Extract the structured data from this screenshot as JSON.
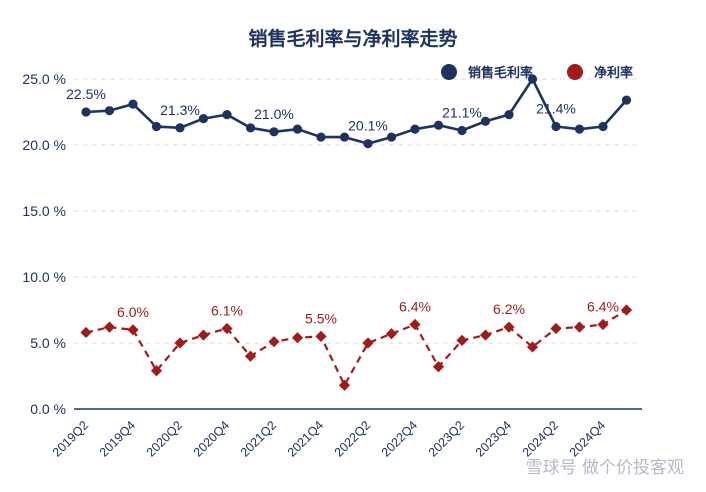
{
  "chart_data": {
    "type": "line",
    "title": "销售毛利率与净利率走势",
    "categories": [
      "2019Q2",
      "2019Q3",
      "2019Q4",
      "2020Q1",
      "2020Q2",
      "2020Q3",
      "2020Q4",
      "2021Q1",
      "2021Q2",
      "2021Q3",
      "2021Q4",
      "2022Q1",
      "2022Q2",
      "2022Q3",
      "2022Q4",
      "2023Q1",
      "2023Q2",
      "2023Q3",
      "2023Q4",
      "2024Q1",
      "2024Q2",
      "2024Q3",
      "2024Q4",
      "2025Q1"
    ],
    "tick_labels": [
      "2019Q2",
      "",
      "2019Q4",
      "",
      "2020Q2",
      "",
      "2020Q4",
      "",
      "2021Q2",
      "",
      "2021Q4",
      "",
      "2022Q2",
      "",
      "2022Q4",
      "",
      "2023Q2",
      "",
      "2023Q4",
      "",
      "2024Q2",
      "",
      "2024Q4",
      ""
    ],
    "series": [
      {
        "name": "销售毛利率",
        "color": "#1f3260",
        "marker": "circle",
        "line_style": "solid",
        "values": [
          22.5,
          22.6,
          23.1,
          21.4,
          21.3,
          22.0,
          22.3,
          21.3,
          21.0,
          21.2,
          20.6,
          20.6,
          20.1,
          20.6,
          21.2,
          21.5,
          21.1,
          21.8,
          22.3,
          25.0,
          21.4,
          21.2,
          21.4,
          23.4
        ]
      },
      {
        "name": "净利率",
        "color": "#a01c1c",
        "marker": "diamond",
        "line_style": "dashed",
        "values": [
          5.8,
          6.2,
          6.0,
          2.9,
          5.0,
          5.6,
          6.1,
          4.0,
          5.1,
          5.4,
          5.5,
          1.8,
          5.0,
          5.7,
          6.4,
          3.2,
          5.2,
          5.6,
          6.2,
          4.7,
          6.1,
          6.2,
          6.4,
          7.5
        ]
      }
    ],
    "annotations": [
      {
        "series": 0,
        "index": 0,
        "text": "22.5%"
      },
      {
        "series": 0,
        "index": 4,
        "text": "21.3%"
      },
      {
        "series": 0,
        "index": 8,
        "text": "21.0%"
      },
      {
        "series": 0,
        "index": 12,
        "text": "20.1%"
      },
      {
        "series": 0,
        "index": 16,
        "text": "21.1%"
      },
      {
        "series": 0,
        "index": 20,
        "text": "21.4%"
      },
      {
        "series": 1,
        "index": 2,
        "text": "6.0%"
      },
      {
        "series": 1,
        "index": 6,
        "text": "6.1%"
      },
      {
        "series": 1,
        "index": 10,
        "text": "5.5%"
      },
      {
        "series": 1,
        "index": 14,
        "text": "6.4%"
      },
      {
        "series": 1,
        "index": 18,
        "text": "6.2%"
      },
      {
        "series": 1,
        "index": 22,
        "text": "6.4%"
      }
    ],
    "yticks": [
      0,
      5,
      10,
      15,
      20,
      25
    ],
    "ytick_labels": [
      "0.0 %",
      "5.0 %",
      "10.0 %",
      "15.0 %",
      "20.0 %",
      "25.0 %"
    ],
    "ylim": [
      0,
      25
    ],
    "xlabel": "",
    "ylabel": "",
    "grid": "horizontal dashed",
    "legend_position": "top-right"
  },
  "watermark": "雪球号 做个价投客观"
}
